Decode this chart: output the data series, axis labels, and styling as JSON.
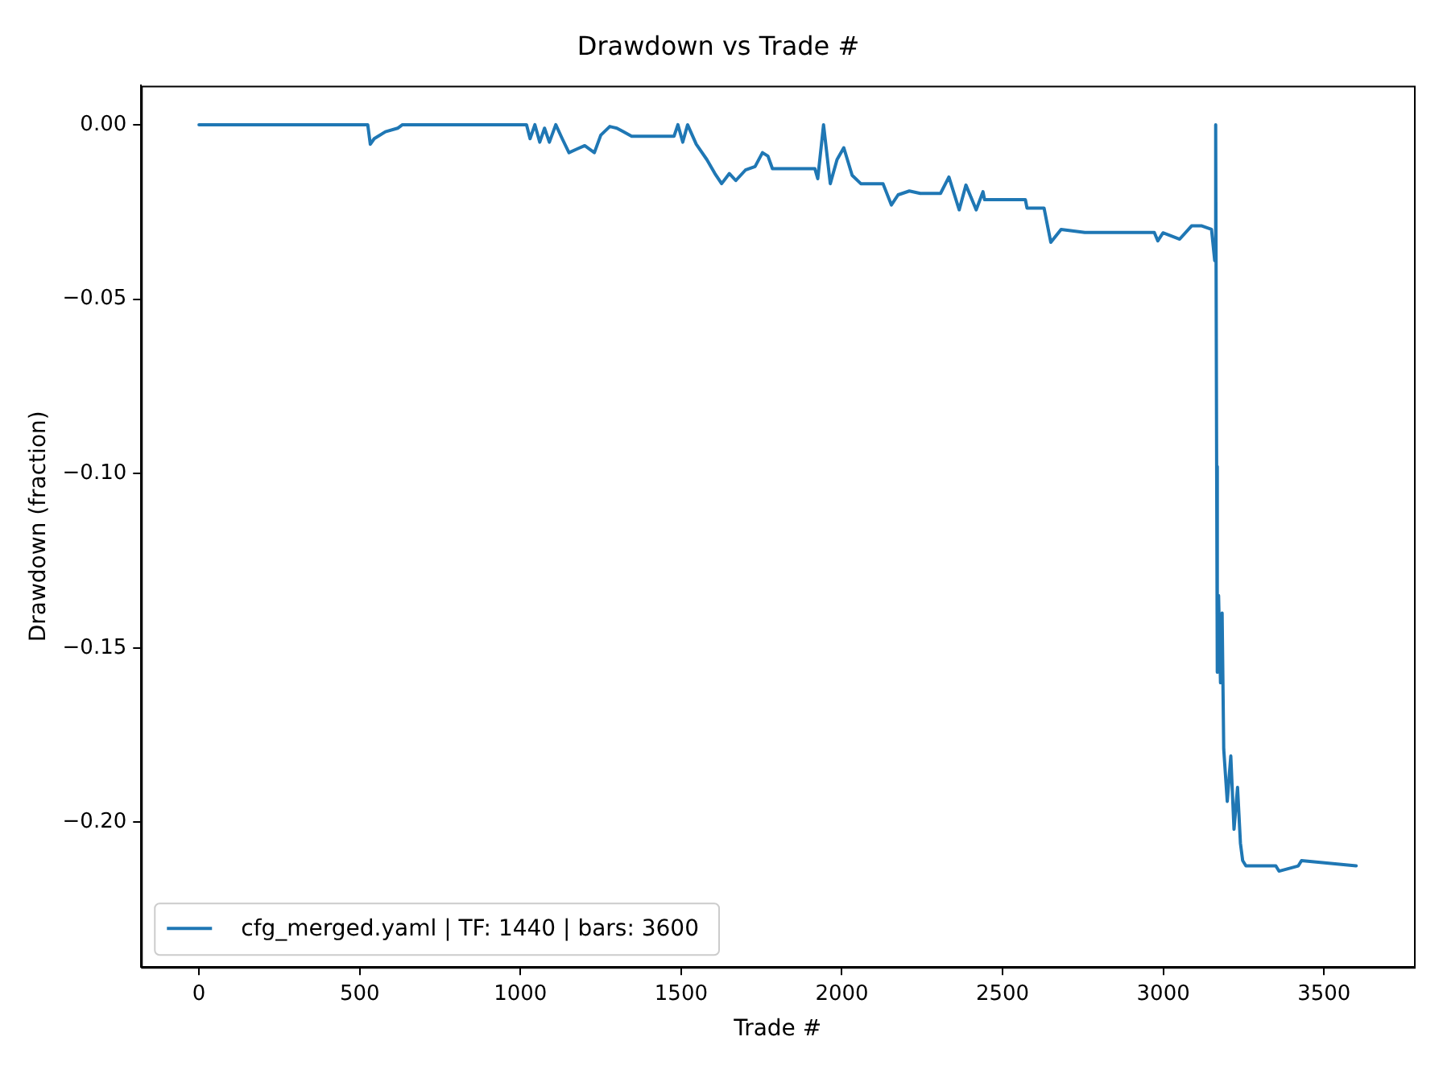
{
  "chart_data": {
    "type": "line",
    "title": "Drawdown vs Trade #",
    "xlabel": "Trade #",
    "ylabel": "Drawdown (fraction)",
    "series": [
      {
        "name": "cfg_merged.yaml | TF: 1440 | bars: 3600",
        "color": "#1f77b4",
        "x": [
          0,
          525,
          533,
          545,
          580,
          618,
          633,
          1019,
          1030,
          1045,
          1060,
          1075,
          1090,
          1110,
          1130,
          1151,
          1175,
          1200,
          1230,
          1250,
          1278,
          1300,
          1320,
          1346,
          1478,
          1490,
          1505,
          1520,
          1547,
          1580,
          1605,
          1626,
          1650,
          1670,
          1700,
          1730,
          1753,
          1770,
          1784,
          1916,
          1925,
          1943,
          1964,
          1985,
          2006,
          2032,
          2059,
          2128,
          2154,
          2175,
          2210,
          2244,
          2307,
          2333,
          2365,
          2386,
          2418,
          2439,
          2444,
          2571,
          2576,
          2629,
          2650,
          2682,
          2756,
          2972,
          2983,
          2999,
          3051,
          3088,
          3120,
          3150,
          3160,
          3163,
          3166,
          3168,
          3172,
          3178,
          3183,
          3188,
          3199,
          3210,
          3220,
          3231,
          3240,
          3247,
          3257,
          3268,
          3284,
          3300,
          3350,
          3360,
          3420,
          3430,
          3600
        ],
        "values": [
          0,
          0,
          -0.0056,
          -0.004,
          -0.002,
          -0.001,
          0,
          0,
          -0.004,
          0,
          -0.005,
          -0.001,
          -0.005,
          0,
          -0.004,
          -0.008,
          -0.007,
          -0.006,
          -0.008,
          -0.003,
          -0.0005,
          -0.001,
          -0.002,
          -0.0033,
          -0.0033,
          0,
          -0.005,
          0,
          -0.0056,
          -0.01,
          -0.014,
          -0.0169,
          -0.014,
          -0.016,
          -0.013,
          -0.012,
          -0.008,
          -0.009,
          -0.0126,
          -0.0126,
          -0.0155,
          0,
          -0.0169,
          -0.01,
          -0.0066,
          -0.0145,
          -0.0169,
          -0.0169,
          -0.023,
          -0.0201,
          -0.019,
          -0.0197,
          -0.0197,
          -0.015,
          -0.0244,
          -0.0173,
          -0.0244,
          -0.0192,
          -0.0215,
          -0.0215,
          -0.0239,
          -0.0239,
          -0.0337,
          -0.03,
          -0.0309,
          -0.0309,
          -0.0333,
          -0.031,
          -0.0328,
          -0.029,
          -0.029,
          -0.03,
          -0.039,
          0,
          -0.098,
          -0.157,
          -0.135,
          -0.16,
          -0.14,
          -0.179,
          -0.194,
          -0.181,
          -0.202,
          -0.19,
          -0.206,
          -0.211,
          -0.2125,
          -0.2125,
          -0.2125,
          -0.2125,
          -0.2125,
          -0.214,
          -0.2125,
          -0.211,
          -0.2125
        ]
      }
    ],
    "xlim": [
      -180,
      3780
    ],
    "xticks": [
      0,
      500,
      1000,
      1500,
      2000,
      2500,
      3000,
      3500
    ],
    "ylim": [
      -0.2415,
      0.0112
    ],
    "yticks": [
      {
        "value": 0,
        "label": "0.00"
      },
      {
        "value": -0.05,
        "label": "−0.05"
      },
      {
        "value": -0.1,
        "label": "−0.10"
      },
      {
        "value": -0.15,
        "label": "−0.15"
      },
      {
        "value": -0.2,
        "label": "−0.20"
      }
    ],
    "grid": false,
    "legend": "bottom left",
    "marker": "none",
    "line_style": "solid"
  }
}
